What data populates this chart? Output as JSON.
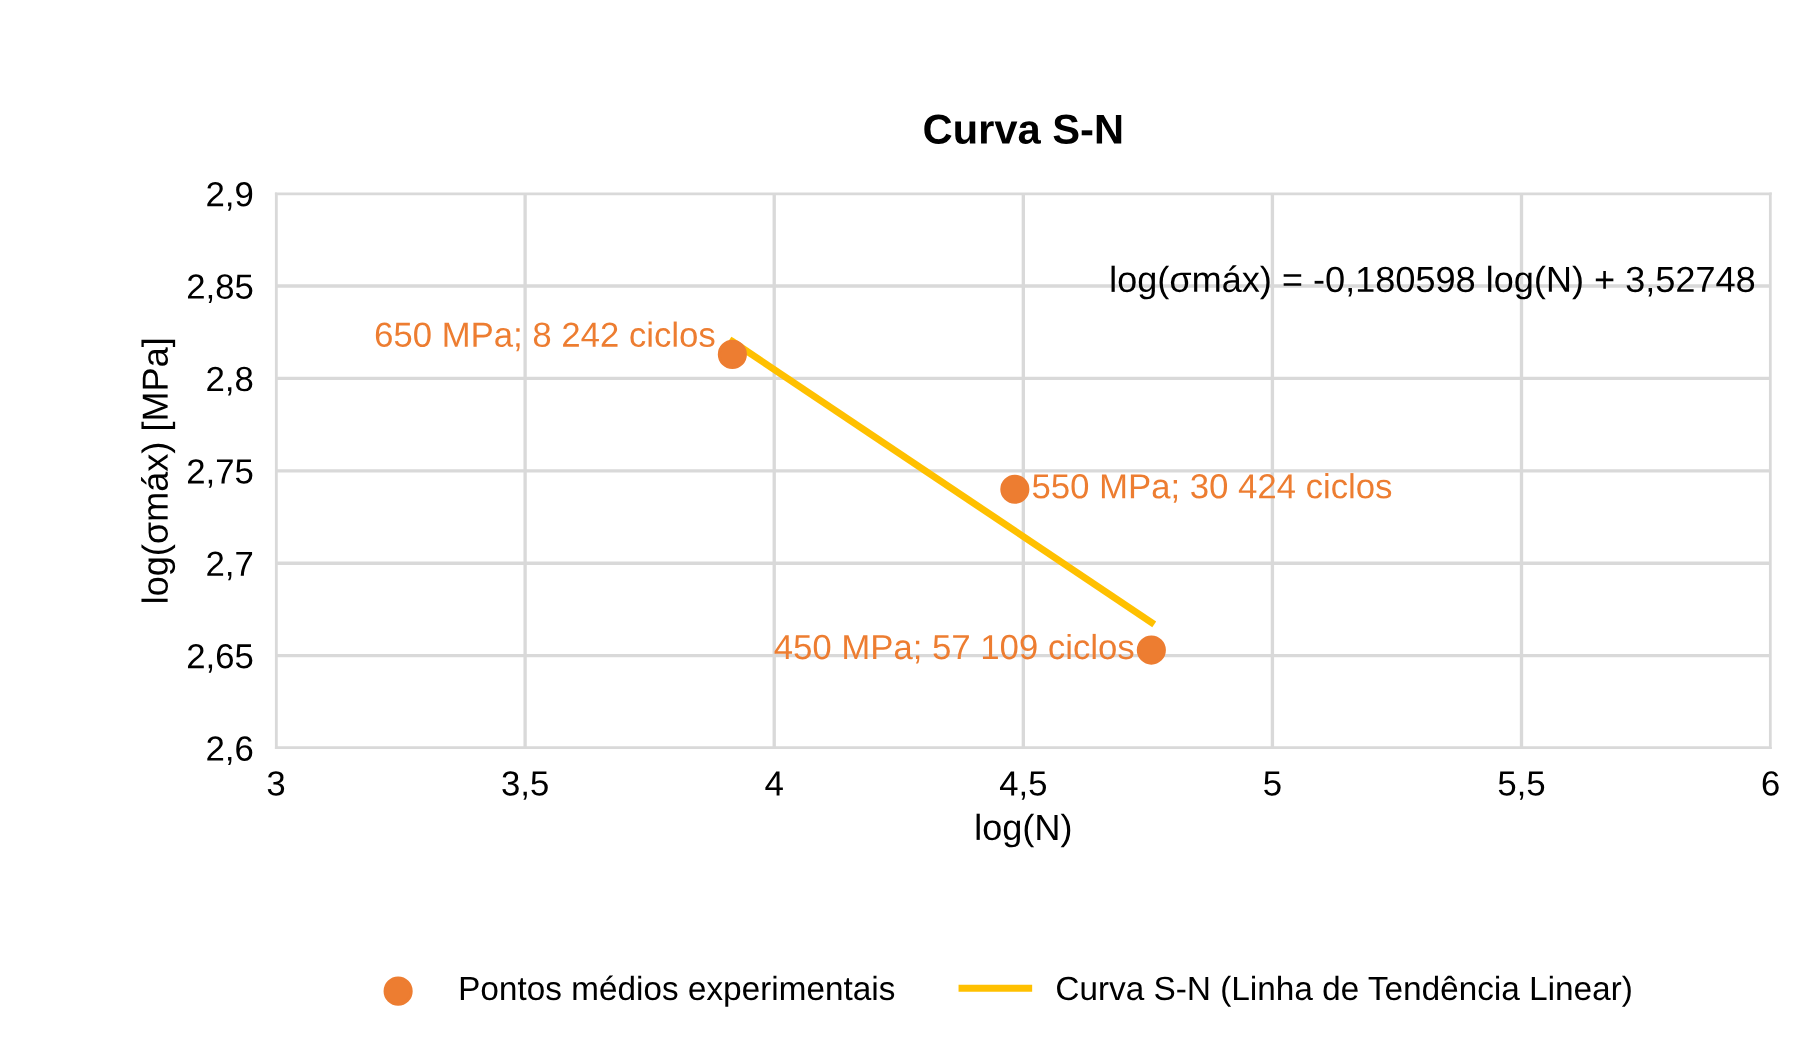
{
  "chart_data": {
    "type": "scatter",
    "title": "Curva S-N",
    "xlabel": "log(N)",
    "ylabel": "log(σmáx) [MPa]",
    "annotations": [
      "log(σmáx) = -0,180598 log(N) + 3,52748"
    ],
    "series": [
      {
        "name": "Pontos médios experimentais",
        "color": "#ed7d31",
        "marker": "circle",
        "x": [
          3.916,
          4.483,
          4.757
        ],
        "values": [
          2.813,
          2.74,
          2.653
        ],
        "value_labels": [
          "650 MPa; 8 242 ciclos",
          "550 MPa; 30 424 ciclos",
          "450 MPa; 57 109 ciclos"
        ]
      },
      {
        "name": "Curva S-N (Linha de Tendência Linear)",
        "type": "line",
        "color": "#ffc000",
        "x": [
          3.916,
          4.757
        ],
        "values": [
          2.82,
          2.668
        ]
      }
    ],
    "xlim": [
      3,
      6
    ],
    "xticks": [
      3,
      {
        "value": 3.5,
        "label": "3,5"
      },
      4,
      {
        "value": 4.5,
        "label": "4,5"
      },
      5,
      {
        "value": 5.5,
        "label": "5,5"
      },
      6
    ],
    "ylim": [
      2.6,
      2.9
    ],
    "yticks": [
      {
        "value": 2.6,
        "label": "2,6"
      },
      {
        "value": 2.65,
        "label": "2,65"
      },
      {
        "value": 2.7,
        "label": "2,7"
      },
      {
        "value": 2.75,
        "label": "2,75"
      },
      {
        "value": 2.8,
        "label": "2,8"
      },
      {
        "value": 2.85,
        "label": "2,85"
      },
      {
        "value": 2.9,
        "label": "2,9"
      }
    ],
    "grid": true,
    "legend": "bottom"
  }
}
